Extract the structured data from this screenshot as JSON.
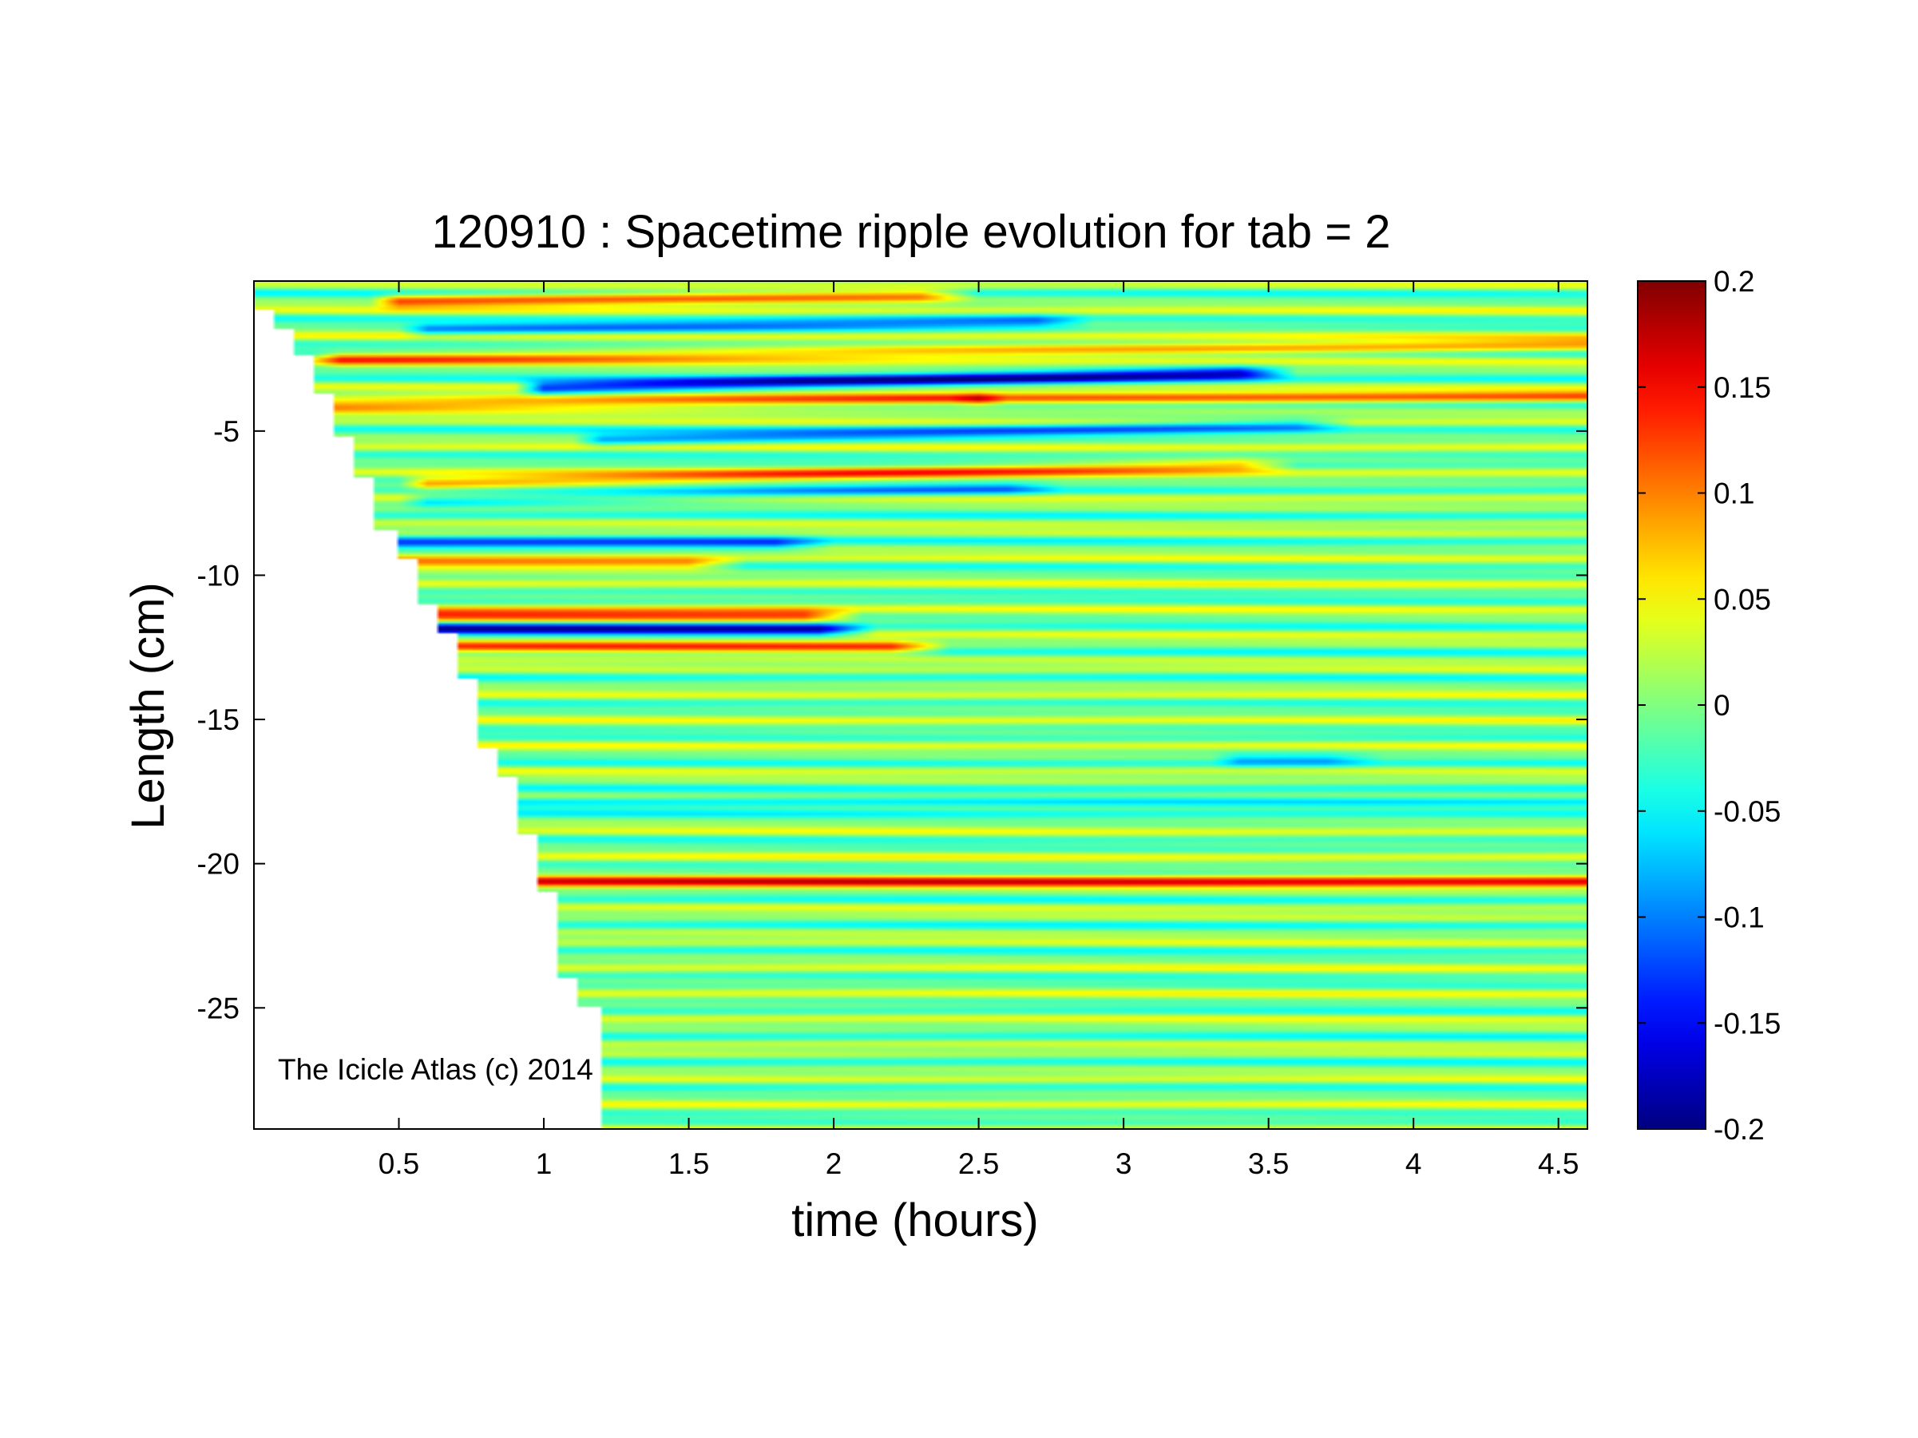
{
  "chart_data": {
    "type": "heatmap",
    "title": "120910 : Spacetime ripple evolution for tab = 2",
    "xlabel": "time (hours)",
    "ylabel": "Length (cm)",
    "xlim": [
      0,
      4.6
    ],
    "ylim": [
      -29.2,
      0.2
    ],
    "xticks": [
      0.5,
      1,
      1.5,
      2,
      2.5,
      3,
      3.5,
      4,
      4.5
    ],
    "xtick_labels": [
      "0.5",
      "1",
      "1.5",
      "2",
      "2.5",
      "3",
      "3.5",
      "4",
      "4.5"
    ],
    "yticks": [
      -5,
      -10,
      -15,
      -20,
      -25
    ],
    "ytick_labels": [
      "-5",
      "-10",
      "-15",
      "-20",
      "-25"
    ],
    "colorbar": {
      "colormap": "jet",
      "clim": [
        -0.2,
        0.2
      ],
      "ticks": [
        0.2,
        0.15,
        0.1,
        0.05,
        0,
        -0.05,
        -0.1,
        -0.15,
        -0.2
      ],
      "tick_labels": [
        "0.2",
        "0.15",
        "0.1",
        "0.05",
        "0",
        "-0.05",
        "-0.1",
        "-0.15",
        "-0.2"
      ]
    },
    "grid": false,
    "growth_front": {
      "description_of_data": "icicle tip position vs time (data exists only after the tip has grown past a given length)",
      "time": [
        0,
        0.07,
        0.14,
        0.21,
        0.28,
        0.35,
        0.42,
        0.49,
        0.56,
        0.63,
        0.7,
        0.77,
        0.84,
        0.91,
        0.98,
        1.05,
        1.12,
        1.2
      ],
      "length": [
        -0.8,
        -1.5,
        -2.4,
        -3.7,
        -5.2,
        -6.6,
        -8.4,
        -9.4,
        -11.0,
        -12.0,
        -13.6,
        -16.0,
        -17.0,
        -19.0,
        -21.0,
        -24.0,
        -25.0,
        -29.2
      ]
    },
    "ridges": [
      {
        "length_start": -0.5,
        "length_end": -0.3,
        "t_start": 0.5,
        "t_end": 2.3,
        "amplitude": 0.12
      },
      {
        "length_start": -1.5,
        "length_end": -1.2,
        "t_start": 0.6,
        "t_end": 2.7,
        "amplitude": -0.09
      },
      {
        "length_start": -2.5,
        "length_end": -2.0,
        "t_start": 0.3,
        "t_end": 4.6,
        "amplitude": 0.1
      },
      {
        "length_start": -3.5,
        "length_end": -3.0,
        "t_start": 1.0,
        "t_end": 3.4,
        "amplitude": -0.17
      },
      {
        "length_start": -4.1,
        "length_end": -3.9,
        "t_start": 0.2,
        "t_end": 2.4,
        "amplitude": 0.13
      },
      {
        "length_start": -3.9,
        "length_end": -3.8,
        "t_start": 2.5,
        "t_end": 4.6,
        "amplitude": 0.1
      },
      {
        "length_start": -5.3,
        "length_end": -4.8,
        "t_start": 1.2,
        "t_end": 3.6,
        "amplitude": -0.09
      },
      {
        "length_start": -6.8,
        "length_end": -6.2,
        "t_start": 0.6,
        "t_end": 3.4,
        "amplitude": 0.1
      },
      {
        "length_start": -7.4,
        "length_end": -7.0,
        "t_start": 0.6,
        "t_end": 2.6,
        "amplitude": -0.07
      },
      {
        "length_start": -8.9,
        "length_end": -8.9,
        "t_start": 0.4,
        "t_end": 1.8,
        "amplitude": -0.1
      },
      {
        "length_start": -9.6,
        "length_end": -9.6,
        "t_start": 0.45,
        "t_end": 1.5,
        "amplitude": 0.11
      },
      {
        "length_start": -11.4,
        "length_end": -11.4,
        "t_start": 0.55,
        "t_end": 1.9,
        "amplitude": 0.14
      },
      {
        "length_start": -11.9,
        "length_end": -11.9,
        "t_start": 0.55,
        "t_end": 1.95,
        "amplitude": -0.18
      },
      {
        "length_start": -12.5,
        "length_end": -12.5,
        "t_start": 0.55,
        "t_end": 2.2,
        "amplitude": 0.14
      },
      {
        "length_start": -17.9,
        "length_end": -17.9,
        "t_start": 0.8,
        "t_end": 4.6,
        "amplitude": -0.08
      },
      {
        "length_start": -20.6,
        "length_end": -20.6,
        "t_start": 0.85,
        "t_end": 4.6,
        "amplitude": 0.13
      },
      {
        "length_start": -16.4,
        "length_end": -16.4,
        "t_start": 3.4,
        "t_end": 3.7,
        "amplitude": -0.06
      }
    ]
  },
  "watermark": "The Icicle Atlas (c) 2014",
  "colors": {
    "background": "#ffffff",
    "axes": "#000000"
  }
}
